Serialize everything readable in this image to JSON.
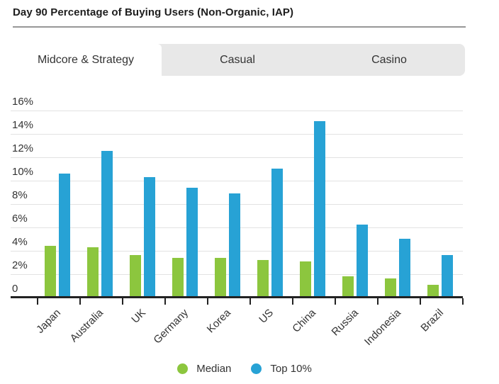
{
  "header": {
    "title": "Day 90 Percentage of Buying Users (Non-Organic, IAP)"
  },
  "tabs": [
    {
      "label": "Midcore & Strategy",
      "active": true
    },
    {
      "label": "Casual",
      "active": false
    },
    {
      "label": "Casino",
      "active": false
    }
  ],
  "chart_data": {
    "type": "bar",
    "title": "Day 90 Percentage of Buying Users (Non-Organic, IAP)",
    "categories": [
      "Japan",
      "Australia",
      "UK",
      "Germany",
      "Korea",
      "US",
      "China",
      "Russia",
      "Indonesia",
      "Brazil"
    ],
    "series": [
      {
        "name": "Median",
        "color": "#8cc63e",
        "values": [
          4.3,
          4.2,
          3.5,
          3.3,
          3.3,
          3.1,
          3.0,
          1.7,
          1.5,
          1.0
        ]
      },
      {
        "name": "Top 10%",
        "color": "#27a2d5",
        "values": [
          10.5,
          12.4,
          10.2,
          9.3,
          8.8,
          10.9,
          15.0,
          6.1,
          4.9,
          3.5
        ]
      }
    ],
    "ylabel": "",
    "xlabel": "",
    "ylim": [
      0,
      16
    ],
    "ytick_step": 2,
    "ytick_labels": [
      "16%",
      "14%",
      "12%",
      "10%",
      "8%",
      "6%",
      "4%",
      "2%",
      "0"
    ],
    "grid": true,
    "legend_position": "bottom",
    "colors": {
      "axis": "#222222",
      "gridline": "#e2e2e2",
      "text": "#333333"
    }
  }
}
